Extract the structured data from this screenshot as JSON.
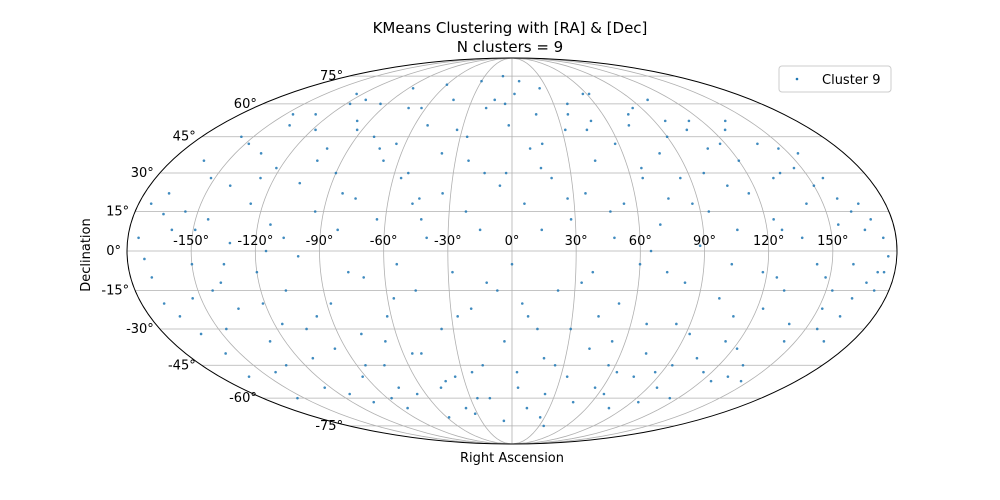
{
  "chart_data": {
    "type": "scatter",
    "projection": "mollweide",
    "title": "KMeans Clustering with [RA] & [Dec]",
    "subtitle": "N clusters = 9",
    "xlabel": "Right Ascension",
    "ylabel": "Declination",
    "xlim": [
      -180,
      180
    ],
    "ylim": [
      -90,
      90
    ],
    "grid": true,
    "legend_position": "top-right",
    "x_ticks": [
      -150,
      -120,
      -90,
      -60,
      -30,
      0,
      30,
      60,
      90,
      120,
      150
    ],
    "x_tick_labels": [
      "-150°",
      "-120°",
      "-90°",
      "-60°",
      "-30°",
      "0°",
      "30°",
      "60°",
      "90°",
      "120°",
      "150°"
    ],
    "y_ticks": [
      -75,
      -60,
      -45,
      -30,
      -15,
      0,
      15,
      30,
      45,
      60,
      75
    ],
    "y_tick_labels": [
      "-75°",
      "-60°",
      "-45°",
      "-30°",
      "-15°",
      "0°",
      "15°",
      "30°",
      "45°",
      "60°",
      "75°"
    ],
    "series": [
      {
        "name": "Cluster 9",
        "color": "#1f77b4",
        "points": [
          [
            -175,
            5
          ],
          [
            -170,
            -10
          ],
          [
            -168,
            22
          ],
          [
            -165,
            -25
          ],
          [
            -163,
            35
          ],
          [
            -160,
            8
          ],
          [
            -158,
            -40
          ],
          [
            -156,
            15
          ],
          [
            -154,
            -18
          ],
          [
            -152,
            28
          ],
          [
            -150,
            -5
          ],
          [
            -148,
            42
          ],
          [
            -146,
            -30
          ],
          [
            -144,
            12
          ],
          [
            -142,
            -48
          ],
          [
            -140,
            25
          ],
          [
            -138,
            -12
          ],
          [
            -136,
            38
          ],
          [
            -134,
            -22
          ],
          [
            -132,
            3
          ],
          [
            -130,
            55
          ],
          [
            -128,
            -35
          ],
          [
            -126,
            18
          ],
          [
            -124,
            -55
          ],
          [
            -122,
            32
          ],
          [
            -120,
            -8
          ],
          [
            -118,
            48
          ],
          [
            -116,
            -28
          ],
          [
            -114,
            10
          ],
          [
            -112,
            -42
          ],
          [
            -110,
            62
          ],
          [
            -108,
            -15
          ],
          [
            -106,
            26
          ],
          [
            -104,
            -62
          ],
          [
            -102,
            40
          ],
          [
            -100,
            -2
          ],
          [
            -98,
            52
          ],
          [
            -96,
            -38
          ],
          [
            -94,
            15
          ],
          [
            -92,
            -50
          ],
          [
            -90,
            30
          ],
          [
            -88,
            -20
          ],
          [
            -86,
            68
          ],
          [
            -84,
            -65
          ],
          [
            -82,
            8
          ],
          [
            -80,
            45
          ],
          [
            -78,
            -32
          ],
          [
            -76,
            20
          ],
          [
            -74,
            -45
          ],
          [
            -72,
            58
          ],
          [
            -70,
            -10
          ],
          [
            -68,
            35
          ],
          [
            -66,
            -58
          ],
          [
            -64,
            12
          ],
          [
            -62,
            -25
          ],
          [
            -60,
            70
          ],
          [
            -58,
            -70
          ],
          [
            -56,
            28
          ],
          [
            -54,
            -5
          ],
          [
            -52,
            50
          ],
          [
            -50,
            -40
          ],
          [
            -48,
            18
          ],
          [
            -46,
            -15
          ],
          [
            -44,
            62
          ],
          [
            -42,
            -52
          ],
          [
            -40,
            5
          ],
          [
            -38,
            38
          ],
          [
            -36,
            -30
          ],
          [
            -34,
            22
          ],
          [
            -32,
            -68
          ],
          [
            -30,
            72
          ],
          [
            -28,
            -8
          ],
          [
            -26,
            45
          ],
          [
            -24,
            -48
          ],
          [
            -22,
            15
          ],
          [
            -20,
            -22
          ],
          [
            -18,
            58
          ],
          [
            -16,
            -60
          ],
          [
            -14,
            30
          ],
          [
            -12,
            -12
          ],
          [
            -10,
            75
          ],
          [
            -8,
            -72
          ],
          [
            -6,
            25
          ],
          [
            -4,
            -35
          ],
          [
            -2,
            50
          ],
          [
            0,
            -5
          ],
          [
            2,
            65
          ],
          [
            4,
            -55
          ],
          [
            6,
            18
          ],
          [
            8,
            -25
          ],
          [
            10,
            40
          ],
          [
            12,
            -65
          ],
          [
            14,
            8
          ],
          [
            16,
            55
          ],
          [
            18,
            -42
          ],
          [
            20,
            28
          ],
          [
            22,
            -15
          ],
          [
            24,
            68
          ],
          [
            26,
            -70
          ],
          [
            28,
            12
          ],
          [
            30,
            -30
          ],
          [
            32,
            48
          ],
          [
            34,
            -50
          ],
          [
            36,
            22
          ],
          [
            38,
            -8
          ],
          [
            40,
            60
          ],
          [
            42,
            -38
          ],
          [
            44,
            35
          ],
          [
            46,
            -62
          ],
          [
            48,
            5
          ],
          [
            50,
            52
          ],
          [
            52,
            -20
          ],
          [
            54,
            18
          ],
          [
            56,
            -45
          ],
          [
            58,
            42
          ],
          [
            60,
            -5
          ],
          [
            62,
            65
          ],
          [
            64,
            -58
          ],
          [
            66,
            28
          ],
          [
            68,
            -28
          ],
          [
            70,
            10
          ],
          [
            72,
            50
          ],
          [
            74,
            -40
          ],
          [
            76,
            20
          ],
          [
            78,
            -65
          ],
          [
            80,
            38
          ],
          [
            82,
            -12
          ],
          [
            84,
            58
          ],
          [
            86,
            -48
          ],
          [
            88,
            2
          ],
          [
            90,
            45
          ],
          [
            92,
            -32
          ],
          [
            94,
            15
          ],
          [
            96,
            -55
          ],
          [
            98,
            30
          ],
          [
            100,
            -18
          ],
          [
            102,
            62
          ],
          [
            104,
            -42
          ],
          [
            106,
            8
          ],
          [
            108,
            40
          ],
          [
            110,
            -25
          ],
          [
            112,
            52
          ],
          [
            114,
            -60
          ],
          [
            116,
            22
          ],
          [
            118,
            -8
          ],
          [
            120,
            35
          ],
          [
            122,
            -38
          ],
          [
            124,
            12
          ],
          [
            126,
            -52
          ],
          [
            128,
            48
          ],
          [
            130,
            -15
          ],
          [
            132,
            28
          ],
          [
            134,
            -45
          ],
          [
            136,
            5
          ],
          [
            138,
            42
          ],
          [
            140,
            -28
          ],
          [
            142,
            18
          ],
          [
            144,
            -35
          ],
          [
            146,
            32
          ],
          [
            148,
            -10
          ],
          [
            150,
            25
          ],
          [
            152,
            -22
          ],
          [
            154,
            10
          ],
          [
            156,
            -30
          ],
          [
            158,
            20
          ],
          [
            160,
            -5
          ],
          [
            162,
            15
          ],
          [
            164,
            -18
          ],
          [
            166,
            8
          ],
          [
            168,
            -12
          ],
          [
            170,
            12
          ],
          [
            172,
            -8
          ],
          [
            174,
            5
          ],
          [
            176,
            -2
          ],
          [
            -172,
            -3
          ],
          [
            -166,
            14
          ],
          [
            -161,
            -32
          ],
          [
            -157,
            45
          ],
          [
            -149,
            8
          ],
          [
            -143,
            -15
          ],
          [
            -137,
            50
          ],
          [
            -131,
            -45
          ],
          [
            -127,
            28
          ],
          [
            -121,
            -20
          ],
          [
            -117,
            60
          ],
          [
            -113,
            -58
          ],
          [
            -107,
            5
          ],
          [
            -103,
            35
          ],
          [
            -97,
            -25
          ],
          [
            -93,
            48
          ],
          [
            -87,
            -60
          ],
          [
            -83,
            22
          ],
          [
            -77,
            -8
          ],
          [
            -73,
            40
          ],
          [
            -67,
            -35
          ],
          [
            -63,
            58
          ],
          [
            -57,
            -18
          ],
          [
            -53,
            30
          ],
          [
            -47,
            -55
          ],
          [
            -43,
            12
          ],
          [
            -37,
            -65
          ],
          [
            -33,
            48
          ],
          [
            -27,
            -25
          ],
          [
            -23,
            35
          ],
          [
            -17,
            -45
          ],
          [
            -13,
            62
          ],
          [
            -7,
            -15
          ],
          [
            -3,
            30
          ],
          [
            3,
            -48
          ],
          [
            7,
            72
          ],
          [
            13,
            -30
          ],
          [
            17,
            42
          ],
          [
            23,
            -58
          ],
          [
            27,
            20
          ],
          [
            33,
            -12
          ],
          [
            37,
            55
          ],
          [
            43,
            -25
          ],
          [
            47,
            15
          ],
          [
            53,
            -35
          ],
          [
            57,
            65
          ],
          [
            63,
            -48
          ],
          [
            67,
            32
          ],
          [
            73,
            -8
          ],
          [
            77,
            55
          ],
          [
            83,
            -28
          ],
          [
            87,
            18
          ],
          [
            93,
            -45
          ],
          [
            97,
            52
          ],
          [
            103,
            -5
          ],
          [
            107,
            25
          ],
          [
            113,
            -35
          ],
          [
            117,
            42
          ],
          [
            123,
            -22
          ],
          [
            127,
            8
          ],
          [
            133,
            -50
          ],
          [
            137,
            30
          ],
          [
            143,
            -5
          ],
          [
            147,
            40
          ],
          [
            153,
            -15
          ],
          [
            157,
            28
          ],
          [
            163,
            -25
          ],
          [
            167,
            18
          ],
          [
            173,
            -15
          ],
          [
            -174,
            18
          ],
          [
            -169,
            -20
          ],
          [
            -162,
            -50
          ],
          [
            -155,
            -60
          ],
          [
            -145,
            55
          ],
          [
            -135,
            -5
          ],
          [
            -125,
            65
          ],
          [
            -115,
            0
          ],
          [
            -105,
            -30
          ],
          [
            -95,
            60
          ],
          [
            -85,
            -45
          ],
          [
            -75,
            -55
          ],
          [
            -65,
            42
          ],
          [
            -55,
            -40
          ],
          [
            -45,
            20
          ],
          [
            -35,
            -50
          ],
          [
            -25,
            -60
          ],
          [
            -15,
            8
          ],
          [
            -5,
            60
          ],
          [
            5,
            -20
          ],
          [
            15,
            32
          ],
          [
            25,
            -45
          ],
          [
            35,
            -75
          ],
          [
            45,
            48
          ],
          [
            55,
            -55
          ],
          [
            65,
            0
          ],
          [
            75,
            -50
          ],
          [
            85,
            28
          ],
          [
            95,
            -62
          ],
          [
            105,
            48
          ],
          [
            115,
            -48
          ],
          [
            125,
            -10
          ],
          [
            135,
            52
          ],
          [
            145,
            -52
          ],
          [
            155,
            38
          ],
          [
            165,
            -35
          ],
          [
            175,
            -8
          ]
        ]
      }
    ]
  }
}
